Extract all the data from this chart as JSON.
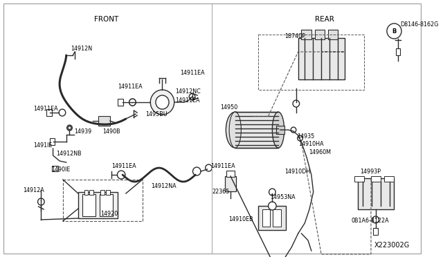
{
  "background_color": "#ffffff",
  "line_color": "#2a2a2a",
  "divider_color": "#888888",
  "front_label": "FRONT",
  "rear_label": "REAR",
  "diagram_id": "X223002G",
  "label_fontsize": 5.8,
  "section_fontsize": 7.5,
  "id_fontsize": 7.0,
  "lw": 1.0
}
